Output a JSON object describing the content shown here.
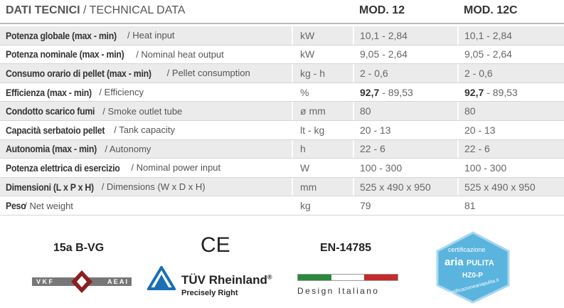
{
  "header": {
    "title_it": "DATI TECNICI",
    "title_en": "/ TECHNICAL DATA",
    "col1": "MOD. 12",
    "col2": "MOD. 12C"
  },
  "table": {
    "rows": [
      [
        "Potenza globale (max - min)",
        "/ Heat input",
        "kW",
        "10,1 - 2,84",
        "10,1 - 2,84"
      ],
      [
        "Potenza nominale (max - min)",
        "/ Nominal heat output",
        "kW",
        "9,05 - 2,64",
        "9,05 - 2,64"
      ],
      [
        "Consumo orario di pellet (max - min)",
        "/ Pellet consumption",
        "kg - h",
        "2 - 0,6",
        "2 - 0,6"
      ],
      [
        "Efficienza (max - min)",
        "/ Efficiency",
        "%",
        {
          "bold": "92,7",
          "rest": "- 89,53"
        },
        {
          "bold": "92,7",
          "rest": "- 89,53"
        }
      ],
      [
        "Condotto scarico fumi",
        "/ Smoke outlet tube",
        "ø mm",
        "80",
        "80"
      ],
      [
        "Capacità serbatoio pellet",
        "/ Tank capacity",
        "lt - kg",
        "20 - 13",
        "20 - 13"
      ],
      [
        "Autonomia (max - min)",
        "/ Autonomy",
        "h",
        "22 - 6",
        "22 - 6"
      ],
      [
        "Potenza elettrica di esercizio",
        "/ Nominal power input",
        "W",
        "100 - 300",
        "100 - 300"
      ],
      [
        "Dimensioni (L x P x H)",
        "/ Dimensions (W x D x H)",
        "mm",
        "525 x 490 x 950",
        "525 x 490 x 950"
      ],
      [
        "Peso",
        "/ Net weight",
        "kg",
        "79",
        "81"
      ]
    ]
  },
  "logos": {
    "vg": "15a B-VG",
    "ce": "CE",
    "en": "EN-14785",
    "vkf_left": "V K F",
    "vkf_right": "A E A I",
    "tuv_name": "TÜV Rheinland",
    "tuv_reg": "®",
    "tuv_tag": "Precisely Right",
    "design": "Design Italiano",
    "cert_top": "certificazione",
    "cert_aria": "aria",
    "cert_pulita": "PULITA",
    "cert_code": "HZ0-P",
    "cert_url": "certificazioneariapulita.it"
  }
}
